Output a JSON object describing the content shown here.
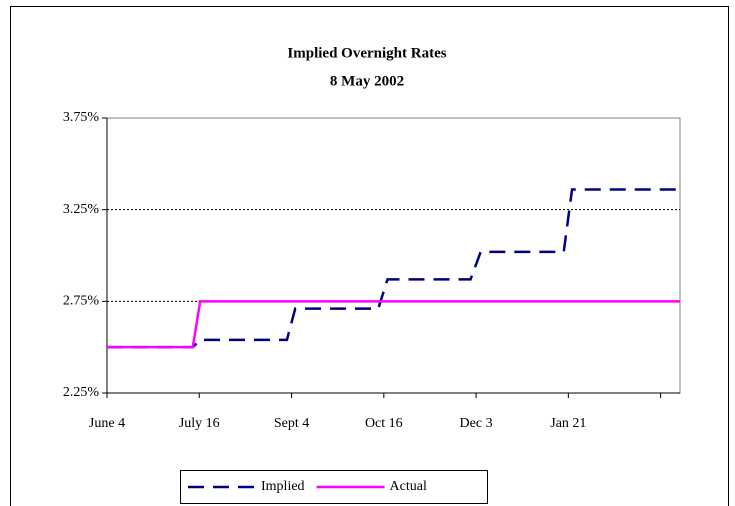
{
  "chart_data": {
    "type": "line",
    "title": "Implied Overnight Rates",
    "subtitle": "8 May 2002",
    "x": [
      0,
      0.93,
      1.01,
      1.95,
      2.04,
      2.94,
      3.04,
      3.94,
      4.05,
      4.95,
      5.04,
      6.21
    ],
    "xlim": [
      0,
      6.21
    ],
    "xticks": [
      {
        "value": 0,
        "label": "June 4"
      },
      {
        "value": 1,
        "label": "July 16"
      },
      {
        "value": 2,
        "label": "Sept 4"
      },
      {
        "value": 3,
        "label": "Oct 16"
      },
      {
        "value": 4,
        "label": "Dec 3"
      },
      {
        "value": 5,
        "label": "Jan 21"
      },
      {
        "value": 6,
        "label": null
      }
    ],
    "ylim": [
      2.25,
      3.75
    ],
    "yticks": [
      {
        "value": 2.25,
        "label": "2.25%"
      },
      {
        "value": 2.75,
        "label": "2.75%"
      },
      {
        "value": 3.25,
        "label": "3.25%"
      },
      {
        "value": 3.75,
        "label": "3.75%"
      }
    ],
    "grid": true,
    "legend": "bottom",
    "series": [
      {
        "name": "Implied",
        "color": "#000080",
        "dashed": true,
        "values": [
          2.5,
          2.5,
          2.54,
          2.54,
          2.71,
          2.71,
          2.87,
          2.87,
          3.02,
          3.02,
          3.36,
          3.36
        ]
      },
      {
        "name": "Actual",
        "color": "#ff00ff",
        "dashed": false,
        "values": [
          2.5,
          2.5,
          2.75,
          2.75,
          2.75,
          2.75,
          2.75,
          2.75,
          2.75,
          2.75,
          2.75,
          2.75
        ]
      }
    ]
  }
}
